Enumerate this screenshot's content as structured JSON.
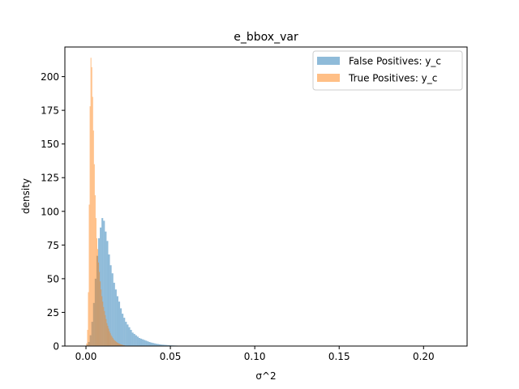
{
  "chart_data": {
    "type": "histogram",
    "title": "e_bbox_var",
    "xlabel": "σ^2",
    "ylabel": "density",
    "xlim": [
      -0.0125,
      0.2258
    ],
    "ylim": [
      0,
      222
    ],
    "xticks": [
      0.0,
      0.05,
      0.1,
      0.15,
      0.2
    ],
    "xtick_labels": [
      "0.00",
      "0.05",
      "0.10",
      "0.15",
      "0.20"
    ],
    "yticks": [
      0,
      25,
      50,
      75,
      100,
      125,
      150,
      175,
      200
    ],
    "ytick_labels": [
      "0",
      "25",
      "50",
      "75",
      "100",
      "125",
      "150",
      "175",
      "200"
    ],
    "grid": false,
    "legend_position": "top-right",
    "series": [
      {
        "name": "False Positives: y_c",
        "color": "#1f77b4",
        "opacity": 0.5,
        "bin_start": 0.0002,
        "bin_width": 0.001,
        "values": [
          1,
          3,
          8,
          18,
          32,
          50,
          67,
          80,
          88,
          95,
          93,
          85,
          78,
          68,
          60,
          54,
          47,
          42,
          37,
          33,
          28,
          24,
          21,
          18,
          16,
          14,
          12,
          10,
          9,
          8,
          7,
          6,
          5.5,
          5,
          4.5,
          4,
          3.5,
          3,
          2.6,
          2.3,
          2,
          1.7,
          1.5,
          1.3,
          1.1,
          1,
          0.9,
          0.8,
          0.7,
          0.6,
          0.5,
          0.45,
          0.4,
          0.35,
          0.3,
          0.25
        ]
      },
      {
        "name": "True Positives: y_c",
        "color": "#ff7f0e",
        "opacity": 0.5,
        "bin_start": 0.0002,
        "bin_width": 0.0005,
        "values": [
          2,
          12,
          40,
          105,
          178,
          214,
          207,
          185,
          160,
          135,
          112,
          95,
          80,
          72,
          62,
          55,
          48,
          42,
          37,
          33,
          29,
          26,
          23,
          20,
          17,
          15,
          13,
          11,
          9.5,
          8,
          7,
          6,
          5,
          4.3,
          3.7,
          3.2,
          2.7,
          2.3,
          2,
          1.7,
          1.4,
          1.2,
          1,
          0.8,
          0.6,
          0.5
        ]
      }
    ]
  }
}
